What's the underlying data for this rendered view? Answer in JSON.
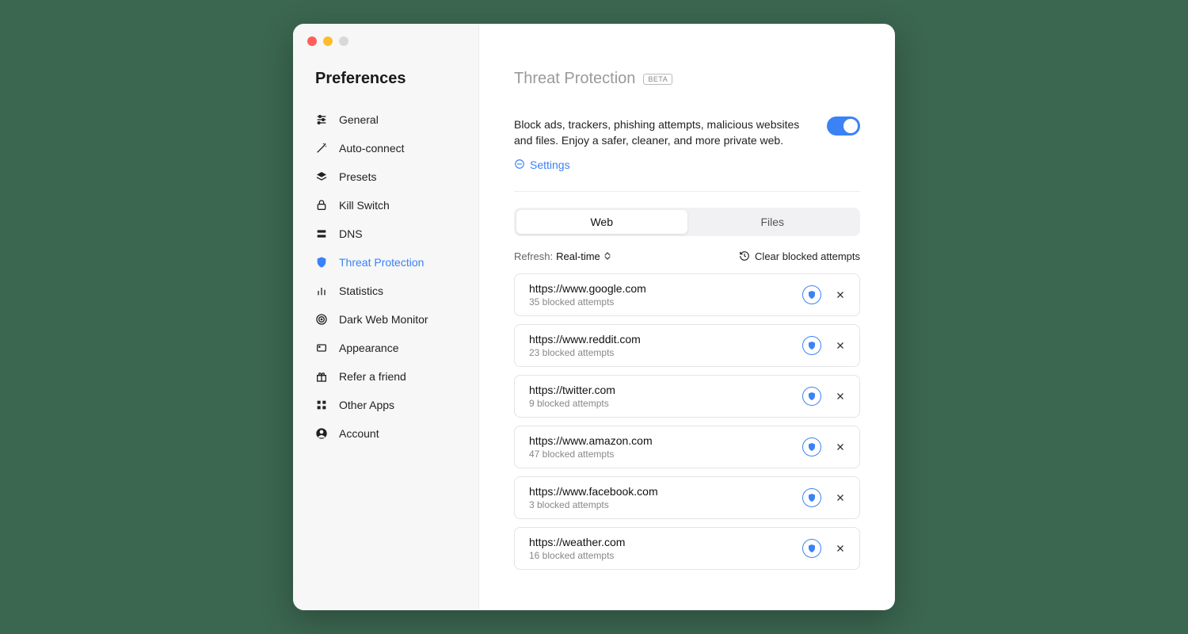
{
  "window": {
    "title": "Preferences"
  },
  "sidebar": {
    "title": "Preferences",
    "items": [
      {
        "label": "General",
        "name": "sidebar-item-general",
        "icon": "sliders-icon"
      },
      {
        "label": "Auto-connect",
        "name": "sidebar-item-auto-connect",
        "icon": "wand-icon"
      },
      {
        "label": "Presets",
        "name": "sidebar-item-presets",
        "icon": "layers-icon"
      },
      {
        "label": "Kill Switch",
        "name": "sidebar-item-kill-switch",
        "icon": "lock-shield-icon"
      },
      {
        "label": "DNS",
        "name": "sidebar-item-dns",
        "icon": "server-icon"
      },
      {
        "label": "Threat Protection",
        "name": "sidebar-item-threat-protection",
        "icon": "shield-icon",
        "active": true
      },
      {
        "label": "Statistics",
        "name": "sidebar-item-statistics",
        "icon": "bar-chart-icon"
      },
      {
        "label": "Dark Web Monitor",
        "name": "sidebar-item-dark-web-monitor",
        "icon": "target-icon"
      },
      {
        "label": "Appearance",
        "name": "sidebar-item-appearance",
        "icon": "rectangle-icon"
      },
      {
        "label": "Refer a friend",
        "name": "sidebar-item-refer",
        "icon": "gift-icon"
      },
      {
        "label": "Other Apps",
        "name": "sidebar-item-other-apps",
        "icon": "grid-icon"
      },
      {
        "label": "Account",
        "name": "sidebar-item-account",
        "icon": "user-icon"
      }
    ]
  },
  "main": {
    "title": "Threat Protection",
    "badge": "BETA",
    "description": "Block ads, trackers, phishing attempts, malicious websites and files. Enjoy a safer, cleaner, and more private web.",
    "settings_label": "Settings",
    "toggle_on": true,
    "tabs": {
      "web": "Web",
      "files": "Files",
      "active": "web"
    },
    "refresh_label": "Refresh:",
    "refresh_value": "Real-time",
    "clear_label": "Clear blocked attempts",
    "blocked_suffix": "blocked attempts",
    "sites": [
      {
        "url": "https://www.google.com",
        "count": 35
      },
      {
        "url": "https://www.reddit.com",
        "count": 23
      },
      {
        "url": "https://twitter.com",
        "count": 9
      },
      {
        "url": "https://www.amazon.com",
        "count": 47
      },
      {
        "url": "https://www.facebook.com",
        "count": 3
      },
      {
        "url": "https://weather.com",
        "count": 16
      }
    ]
  },
  "colors": {
    "accent": "#3b82f6",
    "sidebar_bg": "#f7f7f8",
    "border": "#e4e4e7"
  }
}
